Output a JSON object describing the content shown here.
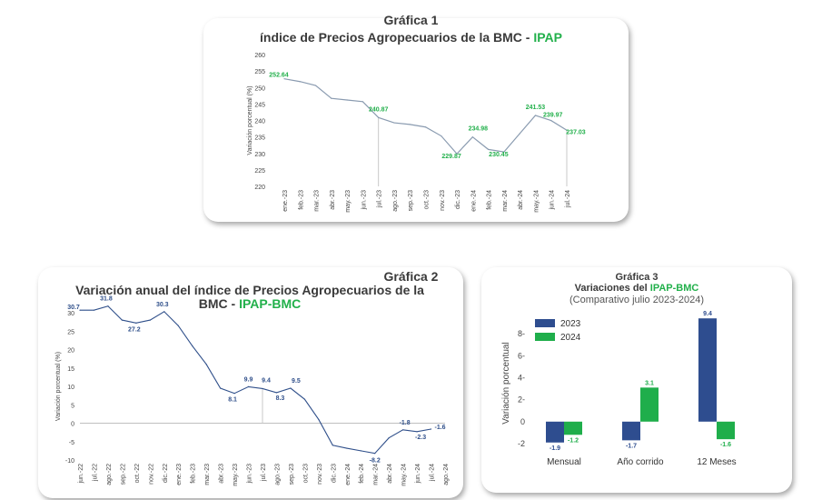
{
  "chart1": {
    "label": "Gráfica 1",
    "title_main": "índice de Precios Agropecuarios de la BMC - ",
    "title_hl": "IPAP",
    "ylabel": "Variación porcentual (%)",
    "colors": {
      "line": "#8a9bb0",
      "label": "#22b04b"
    }
  },
  "chart2": {
    "label": "Gráfica 2",
    "title_line1": "Variación anual del índice de Precios Agropecuarios de la",
    "title_line2_main": "BMC - ",
    "title_hl": "IPAP-BMC",
    "ylabel": "Variación porcentual (%)",
    "colors": {
      "line": "#2f4f8a",
      "label": "#2f4f8a"
    }
  },
  "chart3": {
    "label": "Gráfica 3",
    "title_main": "Variaciones del ",
    "title_hl": "IPAP-BMC",
    "subtitle": "(Comparativo julio 2023-2024)",
    "ylabel": "Variación porcentual",
    "colors": {
      "2023": "#2e4d8f",
      "2024": "#1fae4b"
    }
  },
  "chart_data": [
    {
      "type": "line",
      "title": "índice de Precios Agropecuarios de la BMC - IPAP",
      "ylabel": "Variación porcentual (%)",
      "ylim": [
        220,
        260
      ],
      "yticks": [
        220,
        225,
        230,
        235,
        240,
        245,
        250,
        255,
        260
      ],
      "categories": [
        "ene.-23",
        "feb.-23",
        "mar.-23",
        "abr.-23",
        "may.-23",
        "jun.-23",
        "jul.-23",
        "ago.-23",
        "sep.-23",
        "oct.-23",
        "nov.-23",
        "dic.-23",
        "ene.-24",
        "feb.-24",
        "mar.-24",
        "abr.-24",
        "may.-24",
        "jun.-24",
        "jul.-24"
      ],
      "values": [
        252.64,
        251.8,
        250.6,
        246.7,
        246.2,
        245.7,
        240.87,
        239.3,
        238.8,
        238.0,
        235.3,
        229.87,
        234.98,
        231.2,
        230.45,
        236.0,
        241.53,
        239.97,
        237.03
      ],
      "labels": [
        "252.64",
        "",
        "",
        "",
        "",
        "",
        "240.87",
        "",
        "",
        "",
        "",
        "229.87",
        "234.98",
        "",
        "230.45",
        "",
        "241.53",
        "239.97",
        "237.03"
      ],
      "grid": false
    },
    {
      "type": "line",
      "title": "Variación anual del índice de Precios Agropecuarios de la BMC - IPAP-BMC",
      "ylabel": "Variación porcentual (%)",
      "ylim": [
        -10,
        30
      ],
      "yticks": [
        -10,
        -5,
        0,
        5,
        10,
        15,
        20,
        25,
        30
      ],
      "categories": [
        "jun.-22",
        "jul.-22",
        "ago.-22",
        "sep.-22",
        "oct.-22",
        "nov.-22",
        "dic.-22",
        "ene.-23",
        "feb.-23",
        "mar.-23",
        "abr.-23",
        "may.-23",
        "jun.-23",
        "jul.-23",
        "ago.-23",
        "sep.-23",
        "oct.-23",
        "nov.-23",
        "dic.-23",
        "ene.-24",
        "feb.-24",
        "mar.-24",
        "abr.-24",
        "may.-24",
        "jun.-24",
        "jul.-24",
        "ago.-24"
      ],
      "values": [
        30.7,
        30.7,
        31.8,
        28.0,
        27.2,
        28.0,
        30.3,
        26.5,
        21.0,
        16.0,
        9.5,
        8.1,
        9.9,
        9.4,
        8.3,
        9.5,
        6.5,
        1.0,
        -6.0,
        -6.8,
        -7.5,
        -8.2,
        -4.0,
        -1.8,
        -2.3,
        -1.6,
        null
      ],
      "labels": [
        "30.7",
        "",
        "31.8",
        "",
        "27.2",
        "",
        "30.3",
        "",
        "",
        "",
        "",
        "8.1",
        "9.9",
        "9.4",
        "8.3",
        "9.5",
        "",
        "",
        "",
        "",
        "",
        "-8.2",
        "",
        "-1.8",
        "-2.3",
        "-1.6",
        ""
      ],
      "grid": false
    },
    {
      "type": "bar",
      "title": "Variaciones del IPAP-BMC",
      "subtitle": "(Comparativo julio 2023-2024)",
      "ylabel": "Variación porcentual",
      "ylim": [
        -2.5,
        9.5
      ],
      "yticks": [
        -2,
        0,
        2,
        4,
        6,
        8
      ],
      "ytick_labels": [
        "-2",
        "0",
        "2-",
        "4-",
        "6-",
        "8-"
      ],
      "categories": [
        "Mensual",
        "Año corrido",
        "12 Meses"
      ],
      "series": [
        {
          "name": "2023",
          "values": [
            -1.9,
            -1.7,
            9.4
          ],
          "labels": [
            "-1.9",
            "-1.7",
            "9.4"
          ]
        },
        {
          "name": "2024",
          "values": [
            -1.2,
            3.1,
            -1.6
          ],
          "labels": [
            "-1.2",
            "3.1",
            "-1.6"
          ]
        }
      ],
      "legend": "top-left",
      "grid": false
    }
  ]
}
